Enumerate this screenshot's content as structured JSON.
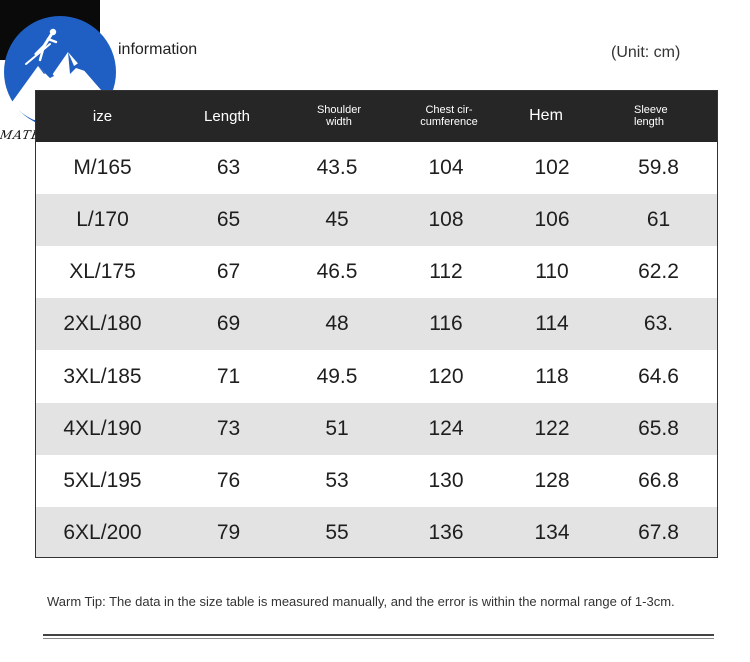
{
  "header": {
    "title": "information",
    "unit": "(Unit: cm)",
    "brand": "MATBARLEY"
  },
  "table": {
    "columns": {
      "size": "ize",
      "length": "Length",
      "shoulder": [
        "Shoulder",
        "width"
      ],
      "chest": [
        "Chest cir-",
        "cumference"
      ],
      "hem": "Hem",
      "sleeve": [
        "Sleeve",
        "length"
      ]
    },
    "rows": [
      [
        "M/165",
        "63",
        "43.5",
        "104",
        "102",
        "59.8"
      ],
      [
        "L/170",
        "65",
        "45",
        "108",
        "106",
        "61"
      ],
      [
        "XL/175",
        "67",
        "46.5",
        "112",
        "110",
        "62.2"
      ],
      [
        "2XL/180",
        "69",
        "48",
        "116",
        "114",
        "63."
      ],
      [
        "3XL/185",
        "71",
        "49.5",
        "120",
        "118",
        "64.6"
      ],
      [
        "4XL/190",
        "73",
        "51",
        "124",
        "122",
        "65.8"
      ],
      [
        "5XL/195",
        "76",
        "53",
        "130",
        "128",
        "66.8"
      ],
      [
        "6XL/200",
        "79",
        "55",
        "136",
        "134",
        "67.8"
      ]
    ]
  },
  "tip": "Warm Tip: The data in the size table is measured manually, and the error is within the normal range of 1-3cm.",
  "colors": {
    "header_bg": "#262626",
    "alt_row": "#e3e3e3",
    "logo_blue": "#1f5fc4"
  },
  "icons": {
    "logo": "mountain-skier-icon"
  }
}
